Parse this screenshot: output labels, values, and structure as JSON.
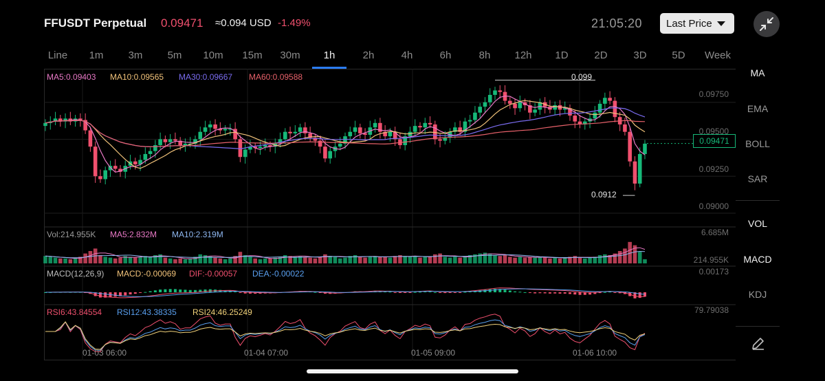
{
  "header": {
    "symbol": "FFUSDT Perpetual",
    "price": "0.09471",
    "approx_usd": "≈0.094 USD",
    "change": "-1.49%",
    "clock": "21:05:20",
    "price_type_label": "Last Price"
  },
  "tabs": [
    "Line",
    "1m",
    "3m",
    "5m",
    "10m",
    "15m",
    "30m",
    "1h",
    "2h",
    "4h",
    "6h",
    "8h",
    "12h",
    "1D",
    "2D",
    "3D",
    "5D",
    "Week"
  ],
  "active_tab": "1h",
  "indicators": {
    "ma5": "MA5:0.09403",
    "ma10": "MA10:0.09565",
    "ma30": "MA30:0.09667",
    "ma60": "MA60:0.09588",
    "vol": "Vol:214.955K",
    "vol_ma5": "MA5:2.832M",
    "vol_ma10": "MA10:2.319M",
    "macd_title": "MACD(12,26,9)",
    "macd": "MACD:-0.00069",
    "dif": "DIF:-0.00057",
    "dea": "DEA:-0.00022",
    "rsi6": "RSI6:43.84554",
    "rsi12": "RSI12:43.38335",
    "rsi24": "RSI24:46.25249"
  },
  "price_axis": [
    "0.09750",
    "0.09500",
    "0.09250",
    "0.09000"
  ],
  "vol_axis_top": "6.685M",
  "vol_axis_bottom": "214.955K",
  "macd_axis_top": "0.00173",
  "rsi_axis_top": "79.79038",
  "current_price_tag": "0.09471",
  "high_marker": "0.099",
  "low_marker": "0.0912",
  "time_axis": [
    "01-03 06:00",
    "01-04 07:00",
    "01-05 09:00",
    "01-06 10:00"
  ],
  "side_menu": {
    "main": [
      "MA",
      "EMA",
      "BOLL",
      "SAR"
    ],
    "sub": [
      "VOL",
      "MACD",
      "KDJ"
    ],
    "active": [
      "MA",
      "VOL",
      "MACD"
    ]
  },
  "colors": {
    "up": "#16b979",
    "down": "#f0506e",
    "ma5": "#e879c6",
    "ma10": "#f2c37a",
    "ma30": "#7a6cf0",
    "ma60": "#e8616a",
    "accent": "#2a7cf6"
  },
  "chart_data": {
    "type": "candlestick",
    "title": "FFUSDT Perpetual 1h",
    "ylim": [
      0.0893,
      0.0993
    ],
    "x_ticks": [
      "01-03 06:00",
      "01-04 07:00",
      "01-05 09:00",
      "01-06 10:00"
    ],
    "high": 0.099,
    "low": 0.0912,
    "last": 0.09471,
    "closes": [
      0.0961,
      0.0962,
      0.0964,
      0.0962,
      0.0964,
      0.0962,
      0.0964,
      0.0963,
      0.0956,
      0.0945,
      0.0925,
      0.0923,
      0.0929,
      0.0932,
      0.093,
      0.0928,
      0.0932,
      0.0935,
      0.0933,
      0.0936,
      0.094,
      0.0942,
      0.0946,
      0.095,
      0.0948,
      0.095,
      0.0949,
      0.0946,
      0.0947,
      0.0947,
      0.095,
      0.0955,
      0.0958,
      0.096,
      0.0957,
      0.0956,
      0.0957,
      0.0957,
      0.095,
      0.0938,
      0.0943,
      0.0945,
      0.0944,
      0.0945,
      0.0946,
      0.0945,
      0.0947,
      0.095,
      0.0955,
      0.0954,
      0.0955,
      0.0958,
      0.0954,
      0.0951,
      0.0949,
      0.0945,
      0.0937,
      0.0942,
      0.0945,
      0.0947,
      0.0952,
      0.0955,
      0.0958,
      0.0954,
      0.0953,
      0.0958,
      0.0961,
      0.0955,
      0.0952,
      0.0955,
      0.095,
      0.0946,
      0.0952,
      0.0955,
      0.0959,
      0.0958,
      0.0961,
      0.096,
      0.095,
      0.0949,
      0.0951,
      0.0955,
      0.0958,
      0.0955,
      0.0962,
      0.0963,
      0.0968,
      0.0972,
      0.0975,
      0.098,
      0.0983,
      0.0982,
      0.0976,
      0.0974,
      0.0971,
      0.0975,
      0.0973,
      0.0968,
      0.097,
      0.0975,
      0.0972,
      0.097,
      0.0973,
      0.097,
      0.0971,
      0.0966,
      0.0962,
      0.096,
      0.0962,
      0.0964,
      0.0968,
      0.0974,
      0.0978,
      0.0976,
      0.0965,
      0.096,
      0.0955,
      0.0935,
      0.092,
      0.094,
      0.0947
    ],
    "volumes": [
      0.9,
      0.8,
      0.7,
      0.6,
      0.6,
      0.5,
      0.7,
      0.8,
      1.2,
      1.5,
      1.8,
      1.0,
      0.8,
      0.7,
      0.6,
      0.7,
      0.9,
      0.8,
      0.7,
      0.8,
      0.9,
      0.8,
      1.0,
      1.1,
      0.7,
      0.6,
      0.5,
      0.6,
      0.5,
      0.6,
      0.8,
      1.1,
      1.0,
      0.9,
      0.7,
      0.6,
      0.5,
      0.6,
      0.9,
      1.4,
      1.0,
      0.8,
      0.6,
      0.5,
      0.6,
      0.6,
      0.7,
      0.8,
      1.0,
      0.9,
      0.8,
      0.9,
      0.8,
      0.7,
      0.6,
      0.8,
      1.1,
      0.9,
      0.8,
      0.6,
      0.7,
      0.9,
      1.0,
      0.8,
      0.7,
      0.8,
      0.9,
      0.8,
      0.8,
      0.7,
      0.9,
      1.0,
      0.9,
      0.8,
      0.9,
      0.7,
      0.8,
      0.8,
      1.1,
      1.2,
      0.8,
      0.7,
      0.8,
      0.7,
      0.9,
      1.0,
      1.1,
      1.2,
      1.3,
      1.2,
      1.0,
      0.9,
      1.0,
      0.8,
      0.7,
      0.8,
      0.7,
      0.8,
      0.7,
      0.8,
      0.7,
      0.6,
      0.7,
      0.6,
      0.7,
      0.8,
      0.9,
      0.7,
      0.6,
      0.7,
      0.8,
      1.0,
      1.1,
      1.0,
      1.2,
      1.5,
      1.8,
      2.6,
      2.2,
      1.4,
      0.5
    ]
  }
}
